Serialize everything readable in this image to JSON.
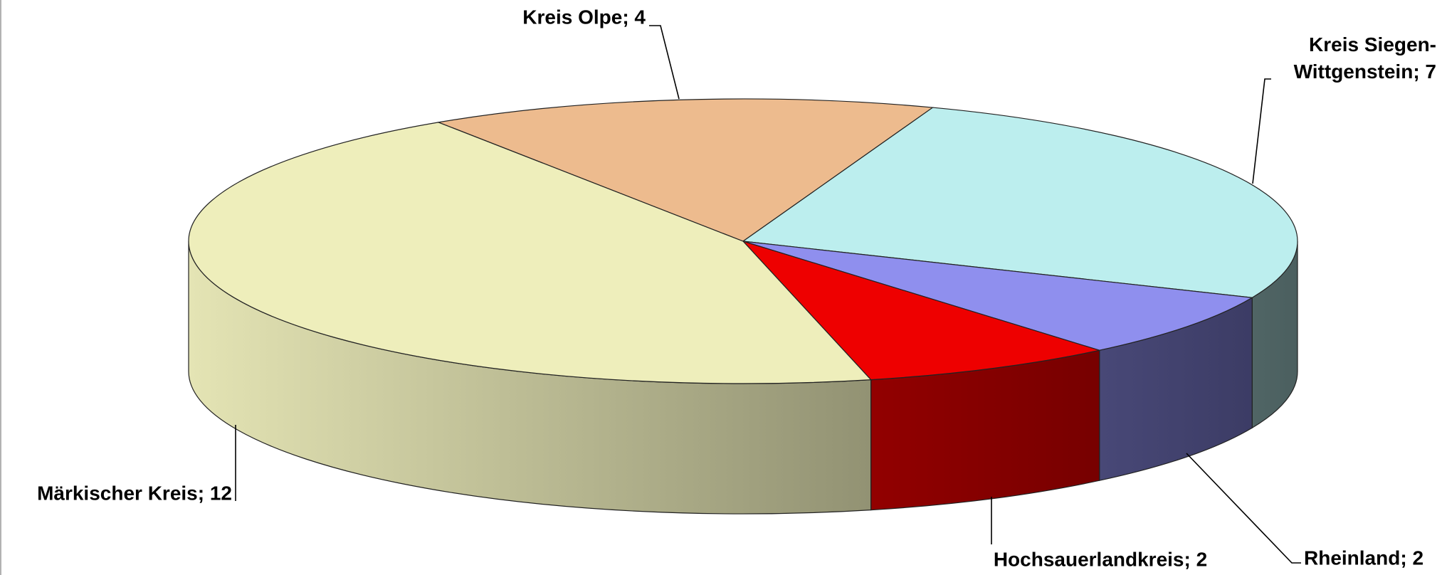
{
  "chart_data": {
    "type": "pie3d",
    "values": [
      4,
      7,
      2,
      2,
      12
    ],
    "value_labels": [
      "Kreis Olpe; 4",
      "Kreis Siegen-Wittgenstein; 7",
      "Rheinland; 2",
      "Hochsauerlandkreis; 2",
      "Märkischer Kreis; 12"
    ],
    "colors": [
      "#edbb8e",
      "#bceeee",
      "#8f8fee",
      "#ee0000",
      "#eeeebb"
    ]
  }
}
